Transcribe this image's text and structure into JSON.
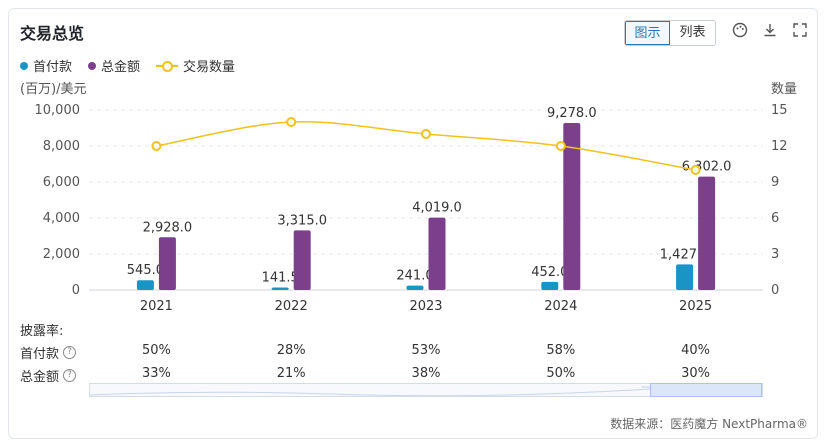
{
  "header": {
    "title": "交易总览",
    "view_chart": "图示",
    "view_table": "列表"
  },
  "icons": [
    "palette-icon",
    "download-icon",
    "fullscreen-icon"
  ],
  "legend": [
    {
      "label": "首付款",
      "color": "#1a94c4"
    },
    {
      "label": "总金额",
      "color": "#7b3f8c"
    },
    {
      "label": "交易数量",
      "color": "#f2c21a"
    }
  ],
  "axes": {
    "left_unit": "(百万)/美元",
    "right_unit": "数量"
  },
  "chart_data": {
    "type": "bar",
    "categories": [
      "2021",
      "2022",
      "2023",
      "2024",
      "2025"
    ],
    "series": [
      {
        "name": "首付款",
        "type": "bar",
        "color": "#1a94c4",
        "values": [
          545.0,
          141.5,
          241.0,
          452.0,
          1427.0
        ],
        "labels": [
          "545.0",
          "141.5",
          "241.0",
          "452.0",
          "1,427.0"
        ]
      },
      {
        "name": "总金额",
        "type": "bar",
        "color": "#7b3f8c",
        "values": [
          2928.0,
          3315.0,
          4019.0,
          9278.0,
          6302.0
        ],
        "labels": [
          "2,928.0",
          "3,315.0",
          "4,019.0",
          "9,278.0",
          "6,302.0"
        ]
      },
      {
        "name": "交易数量",
        "type": "line",
        "axis": "right",
        "color": "#f2c21a",
        "values": [
          12,
          14,
          13,
          12,
          10
        ]
      }
    ],
    "ylim": [
      0,
      10000
    ],
    "yticks": [
      "10,000",
      "8,000",
      "6,000",
      "4,000",
      "2,000",
      "0"
    ],
    "y2lim": [
      0,
      15
    ],
    "y2ticks": [
      "15",
      "12",
      "9",
      "6",
      "3",
      "0"
    ],
    "grid": true,
    "legend_position": "top-left"
  },
  "disclosure": {
    "title": "披露率:",
    "rows": [
      {
        "label": "首付款",
        "values": [
          "50%",
          "28%",
          "53%",
          "58%",
          "40%"
        ]
      },
      {
        "label": "总金额",
        "values": [
          "33%",
          "21%",
          "38%",
          "50%",
          "30%"
        ]
      }
    ]
  },
  "source": "数据来源：医药魔方 NextPharma®"
}
